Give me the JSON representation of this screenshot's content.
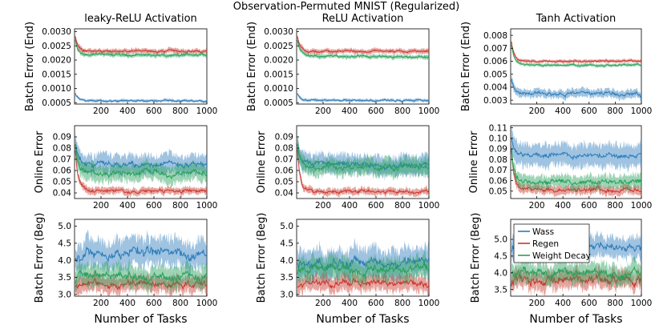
{
  "figure": {
    "title": "Observation-Permuted MNIST (Regularized)"
  },
  "colors": {
    "Wass": "#2b7bba",
    "Regen": "#c9352b",
    "Weight Decay": "#28a05a"
  },
  "chart_data": [
    {
      "type": "line",
      "col": 0,
      "row": 0,
      "title": "leaky-ReLU Activation",
      "xlabel": "",
      "ylabel": "Batch Error (End)",
      "xlim": [
        0,
        1000
      ],
      "ylim": [
        0.00045,
        0.0031
      ],
      "xticks": [
        200,
        400,
        600,
        800,
        1000
      ],
      "yticks": [
        0.0005,
        0.001,
        0.0015,
        0.002,
        0.0025,
        0.003
      ],
      "ytick_labels": [
        "0.0005",
        "0.0010",
        "0.0015",
        "0.0020",
        "0.0025",
        "0.0030"
      ],
      "series": [
        {
          "name": "Wass",
          "start": 0.0009,
          "level": 0.00056,
          "noise": 2e-05,
          "band": 5e-05
        },
        {
          "name": "Regen",
          "start": 0.003,
          "level": 0.0023,
          "noise": 3e-05,
          "band": 8e-05
        },
        {
          "name": "Weight Decay",
          "start": 0.0029,
          "level": 0.00217,
          "noise": 3e-05,
          "band": 7e-05
        }
      ]
    },
    {
      "type": "line",
      "col": 1,
      "row": 0,
      "title": "ReLU Activation",
      "xlabel": "",
      "ylabel": "Batch Error (End)",
      "xlim": [
        0,
        1000
      ],
      "ylim": [
        0.00045,
        0.0031
      ],
      "xticks": [
        200,
        400,
        600,
        800,
        1000
      ],
      "yticks": [
        0.0005,
        0.001,
        0.0015,
        0.002,
        0.0025,
        0.003
      ],
      "ytick_labels": [
        "0.0005",
        "0.0010",
        "0.0015",
        "0.0020",
        "0.0025",
        "0.0030"
      ],
      "series": [
        {
          "name": "Wass",
          "start": 0.0009,
          "level": 0.00058,
          "noise": 2e-05,
          "band": 5e-05
        },
        {
          "name": "Regen",
          "start": 0.003,
          "level": 0.00231,
          "noise": 3e-05,
          "band": 8e-05
        },
        {
          "name": "Weight Decay",
          "start": 0.0029,
          "level": 0.00212,
          "noise": 3e-05,
          "band": 7e-05
        }
      ]
    },
    {
      "type": "line",
      "col": 2,
      "row": 0,
      "title": "Tanh Activation",
      "xlabel": "",
      "ylabel": "Batch Error (End)",
      "xlim": [
        0,
        1000
      ],
      "ylim": [
        0.0027,
        0.0085
      ],
      "xticks": [
        200,
        400,
        600,
        800,
        1000
      ],
      "yticks": [
        0.003,
        0.004,
        0.005,
        0.006,
        0.007,
        0.008
      ],
      "ytick_labels": [
        "0.003",
        "0.004",
        "0.005",
        "0.006",
        "0.007",
        "0.008"
      ],
      "series": [
        {
          "name": "Wass",
          "start": 0.005,
          "level": 0.0035,
          "noise": 0.00012,
          "band": 0.0003
        },
        {
          "name": "Regen",
          "start": 0.008,
          "level": 0.006,
          "noise": 4e-05,
          "band": 0.00012
        },
        {
          "name": "Weight Decay",
          "start": 0.0078,
          "level": 0.0057,
          "noise": 5e-05,
          "band": 0.00012
        }
      ]
    },
    {
      "type": "line",
      "col": 0,
      "row": 1,
      "title": "",
      "xlabel": "",
      "ylabel": "Online Error",
      "xlim": [
        0,
        1000
      ],
      "ylim": [
        0.035,
        0.1
      ],
      "xticks": [
        200,
        400,
        600,
        800,
        1000
      ],
      "yticks": [
        0.04,
        0.05,
        0.06,
        0.07,
        0.08,
        0.09
      ],
      "ytick_labels": [
        "0.04",
        "0.05",
        "0.06",
        "0.07",
        "0.08",
        "0.09"
      ],
      "series": [
        {
          "name": "Wass",
          "start": 0.09,
          "level": 0.066,
          "noise": 0.002,
          "band": 0.008
        },
        {
          "name": "Regen",
          "start": 0.09,
          "level": 0.042,
          "noise": 0.0012,
          "band": 0.003
        },
        {
          "name": "Weight Decay",
          "start": 0.09,
          "level": 0.058,
          "noise": 0.002,
          "band": 0.007
        }
      ]
    },
    {
      "type": "line",
      "col": 1,
      "row": 1,
      "title": "",
      "xlabel": "",
      "ylabel": "Online Error",
      "xlim": [
        0,
        1000
      ],
      "ylim": [
        0.035,
        0.1
      ],
      "xticks": [
        200,
        400,
        600,
        800,
        1000
      ],
      "yticks": [
        0.04,
        0.05,
        0.06,
        0.07,
        0.08,
        0.09
      ],
      "ytick_labels": [
        "0.04",
        "0.05",
        "0.06",
        "0.07",
        "0.08",
        "0.09"
      ],
      "series": [
        {
          "name": "Wass",
          "start": 0.09,
          "level": 0.065,
          "noise": 0.002,
          "band": 0.008
        },
        {
          "name": "Regen",
          "start": 0.09,
          "level": 0.041,
          "noise": 0.0012,
          "band": 0.003
        },
        {
          "name": "Weight Decay",
          "start": 0.09,
          "level": 0.063,
          "noise": 0.002,
          "band": 0.007
        }
      ]
    },
    {
      "type": "line",
      "col": 2,
      "row": 1,
      "title": "",
      "xlabel": "",
      "ylabel": "Online Error",
      "xlim": [
        0,
        1000
      ],
      "ylim": [
        0.043,
        0.112
      ],
      "xticks": [
        200,
        400,
        600,
        800,
        1000
      ],
      "yticks": [
        0.05,
        0.06,
        0.07,
        0.08,
        0.09,
        0.1,
        0.11
      ],
      "ytick_labels": [
        "0.05",
        "0.06",
        "0.07",
        "0.08",
        "0.09",
        "0.10",
        "0.11"
      ],
      "series": [
        {
          "name": "Wass",
          "start": 0.105,
          "level": 0.084,
          "noise": 0.002,
          "band": 0.01
        },
        {
          "name": "Regen",
          "start": 0.1,
          "level": 0.051,
          "noise": 0.0015,
          "band": 0.004
        },
        {
          "name": "Weight Decay",
          "start": 0.1,
          "level": 0.059,
          "noise": 0.002,
          "band": 0.006
        }
      ]
    },
    {
      "type": "line",
      "col": 0,
      "row": 2,
      "title": "",
      "xlabel": "Number of Tasks",
      "ylabel": "Batch Error (Beg)",
      "xlim": [
        0,
        1000
      ],
      "ylim": [
        2.95,
        5.2
      ],
      "xticks": [
        200,
        400,
        600,
        800,
        1000
      ],
      "yticks": [
        3.0,
        3.5,
        4.0,
        4.5,
        5.0
      ],
      "ytick_labels": [
        "3.0",
        "3.5",
        "4.0",
        "4.5",
        "5.0"
      ],
      "series": [
        {
          "name": "Wass",
          "start": 3.9,
          "level": 4.2,
          "noise": 0.12,
          "band": 0.4
        },
        {
          "name": "Regen",
          "start": 3.2,
          "level": 3.3,
          "noise": 0.08,
          "band": 0.22
        },
        {
          "name": "Weight Decay",
          "start": 3.3,
          "level": 3.5,
          "noise": 0.1,
          "band": 0.3
        }
      ]
    },
    {
      "type": "line",
      "col": 1,
      "row": 2,
      "title": "",
      "xlabel": "Number of Tasks",
      "ylabel": "Batch Error (Beg)",
      "xlim": [
        0,
        1000
      ],
      "ylim": [
        2.95,
        5.2
      ],
      "xticks": [
        200,
        400,
        600,
        800,
        1000
      ],
      "yticks": [
        3.0,
        3.5,
        4.0,
        4.5,
        5.0
      ],
      "ytick_labels": [
        "3.0",
        "3.5",
        "4.0",
        "4.5",
        "5.0"
      ],
      "series": [
        {
          "name": "Wass",
          "start": 3.9,
          "level": 3.95,
          "noise": 0.12,
          "band": 0.4
        },
        {
          "name": "Regen",
          "start": 3.2,
          "level": 3.35,
          "noise": 0.08,
          "band": 0.22
        },
        {
          "name": "Weight Decay",
          "start": 3.6,
          "level": 3.75,
          "noise": 0.1,
          "band": 0.3
        }
      ]
    },
    {
      "type": "line",
      "col": 2,
      "row": 2,
      "title": "",
      "xlabel": "Number of Tasks",
      "ylabel": "Batch Error (Beg)",
      "xlim": [
        0,
        1000
      ],
      "ylim": [
        3.3,
        5.6
      ],
      "xticks": [
        200,
        400,
        600,
        800,
        1000
      ],
      "yticks": [
        3.5,
        4.0,
        4.5,
        5.0
      ],
      "ytick_labels": [
        "3.5",
        "4.0",
        "4.5",
        "5.0"
      ],
      "legend": {
        "placement": "top-left",
        "entries": [
          "Wass",
          "Regen",
          "Weight Decay"
        ]
      },
      "series": [
        {
          "name": "Wass",
          "start": 4.6,
          "level": 4.8,
          "noise": 0.1,
          "band": 0.3
        },
        {
          "name": "Regen",
          "start": 3.6,
          "level": 3.8,
          "noise": 0.12,
          "band": 0.25
        },
        {
          "name": "Weight Decay",
          "start": 3.9,
          "level": 4.0,
          "noise": 0.1,
          "band": 0.28
        }
      ]
    }
  ]
}
